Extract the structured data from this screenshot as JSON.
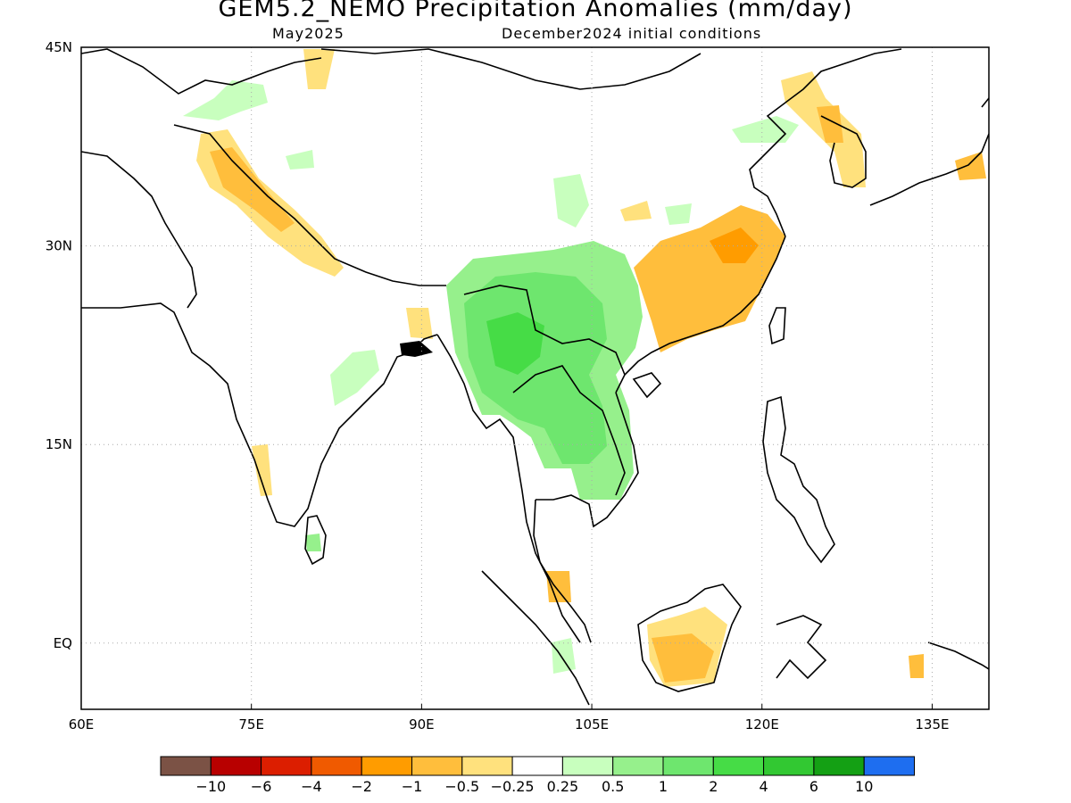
{
  "title": "GEM5.2_NEMO Precipitation Anomalies (mm/day)",
  "subtitle_left": "May2025",
  "subtitle_right": "December2024 initial conditions",
  "axes": {
    "lon_ticks": [
      {
        "value": 60,
        "label": "60E"
      },
      {
        "value": 75,
        "label": "75E"
      },
      {
        "value": 90,
        "label": "90E"
      },
      {
        "value": 105,
        "label": "105E"
      },
      {
        "value": 120,
        "label": "120E"
      },
      {
        "value": 135,
        "label": "135E"
      }
    ],
    "lat_ticks": [
      {
        "value": 45,
        "label": "45N"
      },
      {
        "value": 30,
        "label": "30N"
      },
      {
        "value": 15,
        "label": "15N"
      },
      {
        "value": 0,
        "label": "EQ"
      }
    ],
    "lon_range": [
      60,
      140
    ],
    "lat_range": [
      -5,
      45
    ],
    "grid": "dotted"
  },
  "colorbar": {
    "colors": [
      "#7b5245",
      "#b80000",
      "#dc1e00",
      "#f05a00",
      "#ff9c00",
      "#ffbe3c",
      "#ffe17d",
      "#ffffff",
      "#c8ffbe",
      "#96f08c",
      "#6ee66e",
      "#46dc46",
      "#32c832",
      "#14a014",
      "#1e6ef0"
    ],
    "labels": [
      "-10",
      "-6",
      "-4",
      "-2",
      "-1",
      "-0.5",
      "-0.25",
      "0.25",
      "0.5",
      "1",
      "2",
      "4",
      "6",
      "10"
    ]
  },
  "anomaly_regions": [
    {
      "region": "Myanmar / Yunnan / Laos / Thailand",
      "category": "0.5 to 2",
      "color": "#6ee66e"
    },
    {
      "region": "Central Myanmar core",
      "category": "2 to 4",
      "color": "#46dc46"
    },
    {
      "region": "Eastern China / Yangtze basin",
      "category": "-1 to -0.5",
      "color": "#ffbe3c"
    },
    {
      "region": "Himalayan arc",
      "category": "-0.5 to -0.25",
      "color": "#ffe17d"
    },
    {
      "region": "Borneo",
      "category": "-1 to -0.5",
      "color": "#ffbe3c"
    },
    {
      "region": "Korea / Japan",
      "category": "-0.5 to -0.25",
      "color": "#ffe17d"
    }
  ]
}
